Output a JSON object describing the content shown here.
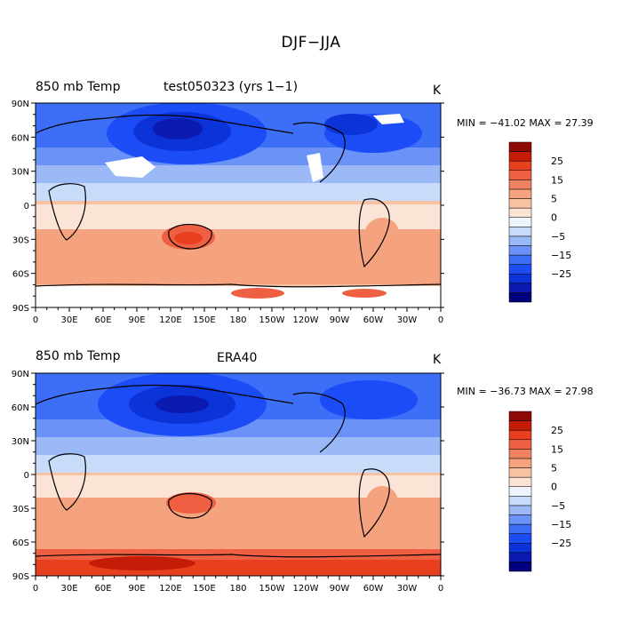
{
  "main_title": "DJF−JJA",
  "colormap": {
    "colors": [
      "#03007f",
      "#0b1ab1",
      "#0b33d8",
      "#1b4cf5",
      "#3d6ef7",
      "#6b93f7",
      "#9cb9f7",
      "#c8dcf9",
      "#eef4fb",
      "#fbe3d6",
      "#f7c2a2",
      "#f5a27e",
      "#f08261",
      "#ef6043",
      "#e83f1f",
      "#c41c07",
      "#8f0906"
    ],
    "labels": [
      "25",
      "15",
      "5",
      "0",
      "−5",
      "−15",
      "−25"
    ]
  },
  "x_ticks": [
    "0",
    "30E",
    "60E",
    "90E",
    "120E",
    "150E",
    "180",
    "150W",
    "120W",
    "90W",
    "60W",
    "30W",
    "0"
  ],
  "y_ticks": [
    "90N",
    "60N",
    "30N",
    "0",
    "30S",
    "60S",
    "90S"
  ],
  "panels": [
    {
      "id": "model",
      "left_title": "850 mb Temp",
      "center_title": "test050323 (yrs 1−1)",
      "units": "K",
      "minmax": "MIN = −41.02 MAX =  27.39"
    },
    {
      "id": "era40",
      "left_title": "850 mb Temp",
      "center_title": "ERA40",
      "units": "K",
      "minmax": "MIN = −36.73 MAX =  27.98"
    }
  ]
}
